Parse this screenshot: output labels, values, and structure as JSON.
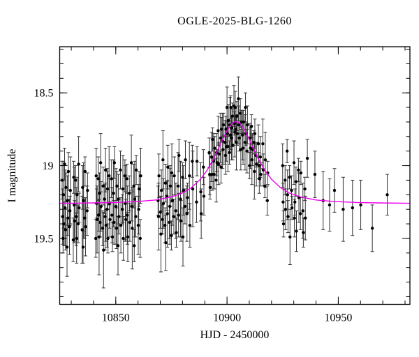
{
  "chart_data": {
    "type": "scatter",
    "title": "OGLE-2025-BLG-1260",
    "xlabel": "HJD - 2450000",
    "ylabel": "I magnitude",
    "grid": false,
    "legend": "none",
    "x_axis": {
      "range": [
        10824.8,
        10982.2
      ],
      "major_ticks": [
        10850,
        10900,
        10950
      ],
      "major_tick_labels": [
        "10850",
        "10900",
        "10950"
      ],
      "minor_tick_step": 10
    },
    "y_axis": {
      "range": [
        18.183,
        19.953
      ],
      "inverted": true,
      "major_ticks": [
        18.5,
        19.0,
        19.5
      ],
      "major_tick_labels": [
        "18.5",
        "19",
        "19.5"
      ],
      "minor_tick_step": 0.1
    },
    "colors": {
      "model_curve": "#ee00ee",
      "data_points": "#000000",
      "error_bars": "#333333",
      "frame": "#000000",
      "background": "#ffffff"
    },
    "model_curve": [
      [
        10825,
        19.259
      ],
      [
        10832,
        19.258
      ],
      [
        10840,
        19.256
      ],
      [
        10850,
        19.253
      ],
      [
        10860,
        19.246
      ],
      [
        10868,
        19.236
      ],
      [
        10875,
        19.215
      ],
      [
        10880,
        19.188
      ],
      [
        10884,
        19.151
      ],
      [
        10888,
        19.094
      ],
      [
        10891,
        19.033
      ],
      [
        10894,
        18.952
      ],
      [
        10895.5,
        18.903
      ],
      [
        10897,
        18.855
      ],
      [
        10898,
        18.822
      ],
      [
        10900,
        18.76
      ],
      [
        10902,
        18.714
      ],
      [
        10903,
        18.702
      ],
      [
        10904,
        18.697
      ],
      [
        10905,
        18.702
      ],
      [
        10906,
        18.714
      ],
      [
        10908,
        18.76
      ],
      [
        10909.5,
        18.805
      ],
      [
        10911,
        18.855
      ],
      [
        10912.5,
        18.903
      ],
      [
        10914,
        18.952
      ],
      [
        10917,
        19.033
      ],
      [
        10920,
        19.094
      ],
      [
        10924,
        19.151
      ],
      [
        10928,
        19.188
      ],
      [
        10933,
        19.215
      ],
      [
        10940,
        19.236
      ],
      [
        10948,
        19.246
      ],
      [
        10958,
        19.253
      ],
      [
        10968,
        19.256
      ],
      [
        10982,
        19.259
      ]
    ],
    "points": [
      [
        10825.9,
        19.1,
        0.13
      ],
      [
        10826.1,
        19.35,
        0.19
      ],
      [
        10826.3,
        19.5,
        0.1
      ],
      [
        10826.5,
        19.2,
        0.23
      ],
      [
        10826.7,
        19.4,
        0.15
      ],
      [
        10827.0,
        18.99,
        0.11
      ],
      [
        10827.2,
        19.29,
        0.26
      ],
      [
        10827.4,
        19.44,
        0.14
      ],
      [
        10827.6,
        19.15,
        0.1
      ],
      [
        10828.1,
        19.56,
        0.2
      ],
      [
        10828.3,
        19.24,
        0.17
      ],
      [
        10828.5,
        19.36,
        0.12
      ],
      [
        10828.7,
        19.04,
        0.13
      ],
      [
        10829.2,
        19.42,
        0.19
      ],
      [
        10829.4,
        19.31,
        0.1
      ],
      [
        10829.6,
        19.17,
        0.23
      ],
      [
        10830.9,
        19.51,
        0.15
      ],
      [
        10831.1,
        19.08,
        0.11
      ],
      [
        10831.3,
        19.27,
        0.26
      ],
      [
        10831.5,
        19.38,
        0.14
      ],
      [
        10832.0,
        19.1,
        0.1
      ],
      [
        10832.2,
        19.35,
        0.2
      ],
      [
        10832.4,
        19.5,
        0.17
      ],
      [
        10832.6,
        19.2,
        0.12
      ],
      [
        10833.1,
        19.4,
        0.13
      ],
      [
        10833.3,
        18.99,
        0.19
      ],
      [
        10833.5,
        19.29,
        0.1
      ],
      [
        10834.9,
        19.44,
        0.23
      ],
      [
        10835.1,
        19.15,
        0.15
      ],
      [
        10835.3,
        19.56,
        0.11
      ],
      [
        10835.5,
        19.24,
        0.26
      ],
      [
        10836.0,
        19.36,
        0.14
      ],
      [
        10836.2,
        19.04,
        0.1
      ],
      [
        10836.4,
        19.42,
        0.2
      ],
      [
        10837.1,
        19.31,
        0.17
      ],
      [
        10837.3,
        19.17,
        0.12
      ],
      [
        10841.0,
        19.5,
        0.13
      ],
      [
        10841.2,
        19.07,
        0.19
      ],
      [
        10841.4,
        19.26,
        0.1
      ],
      [
        10841.6,
        19.37,
        0.23
      ],
      [
        10842.1,
        19.09,
        0.15
      ],
      [
        10842.3,
        19.34,
        0.11
      ],
      [
        10842.5,
        19.49,
        0.26
      ],
      [
        10842.7,
        19.19,
        0.14
      ],
      [
        10843.0,
        19.39,
        0.1
      ],
      [
        10843.2,
        18.98,
        0.2
      ],
      [
        10843.4,
        19.28,
        0.17
      ],
      [
        10844.1,
        19.43,
        0.12
      ],
      [
        10844.3,
        19.14,
        0.13
      ],
      [
        10844.5,
        19.58,
        0.26
      ],
      [
        10845.0,
        19.23,
        0.1
      ],
      [
        10845.2,
        19.35,
        0.23
      ],
      [
        10845.4,
        19.03,
        0.15
      ],
      [
        10845.6,
        19.41,
        0.11
      ],
      [
        10846.1,
        19.3,
        0.26
      ],
      [
        10846.3,
        19.16,
        0.14
      ],
      [
        10846.5,
        19.5,
        0.1
      ],
      [
        10847.0,
        19.07,
        0.2
      ],
      [
        10847.2,
        19.26,
        0.17
      ],
      [
        10847.4,
        19.37,
        0.12
      ],
      [
        10848.1,
        19.09,
        0.13
      ],
      [
        10848.3,
        19.34,
        0.19
      ],
      [
        10848.5,
        19.49,
        0.1
      ],
      [
        10849.0,
        19.19,
        0.23
      ],
      [
        10849.2,
        19.39,
        0.15
      ],
      [
        10849.4,
        18.98,
        0.11
      ],
      [
        10850.1,
        19.28,
        0.26
      ],
      [
        10850.3,
        19.43,
        0.14
      ],
      [
        10850.5,
        19.14,
        0.1
      ],
      [
        10851.0,
        19.55,
        0.2
      ],
      [
        10851.2,
        19.23,
        0.17
      ],
      [
        10851.4,
        19.35,
        0.12
      ],
      [
        10852.1,
        19.03,
        0.13
      ],
      [
        10852.3,
        19.41,
        0.19
      ],
      [
        10853.0,
        19.3,
        0.1
      ],
      [
        10853.2,
        19.16,
        0.23
      ],
      [
        10853.4,
        19.5,
        0.15
      ],
      [
        10854.1,
        19.07,
        0.11
      ],
      [
        10854.3,
        19.26,
        0.26
      ],
      [
        10854.5,
        19.37,
        0.14
      ],
      [
        10855.0,
        19.09,
        0.1
      ],
      [
        10855.2,
        19.34,
        0.2
      ],
      [
        10855.4,
        19.49,
        0.17
      ],
      [
        10856.1,
        19.19,
        0.12
      ],
      [
        10856.3,
        19.39,
        0.13
      ],
      [
        10857.0,
        18.98,
        0.19
      ],
      [
        10857.2,
        19.28,
        0.1
      ],
      [
        10857.4,
        19.43,
        0.28
      ],
      [
        10858.1,
        19.14,
        0.15
      ],
      [
        10858.3,
        19.55,
        0.11
      ],
      [
        10858.5,
        19.23,
        0.26
      ],
      [
        10859.0,
        19.35,
        0.14
      ],
      [
        10859.2,
        19.03,
        0.1
      ],
      [
        10860.1,
        19.41,
        0.2
      ],
      [
        10860.3,
        19.3,
        0.17
      ],
      [
        10860.5,
        19.16,
        0.12
      ],
      [
        10861.0,
        19.5,
        0.13
      ],
      [
        10861.2,
        19.07,
        0.19
      ],
      [
        10869.0,
        19.24,
        0.1
      ],
      [
        10869.2,
        19.35,
        0.23
      ],
      [
        10869.4,
        19.07,
        0.15
      ],
      [
        10870.1,
        19.32,
        0.11
      ],
      [
        10870.3,
        19.47,
        0.26
      ],
      [
        10870.5,
        19.17,
        0.14
      ],
      [
        10871.0,
        19.37,
        0.1
      ],
      [
        10871.2,
        18.96,
        0.2
      ],
      [
        10871.4,
        19.26,
        0.17
      ],
      [
        10872.1,
        19.41,
        0.12
      ],
      [
        10872.3,
        19.12,
        0.13
      ],
      [
        10872.5,
        19.53,
        0.19
      ],
      [
        10873.0,
        19.21,
        0.1
      ],
      [
        10873.2,
        19.33,
        0.23
      ],
      [
        10873.4,
        19.01,
        0.15
      ],
      [
        10874.1,
        19.39,
        0.11
      ],
      [
        10874.3,
        19.28,
        0.26
      ],
      [
        10874.5,
        19.14,
        0.14
      ],
      [
        10875.0,
        19.48,
        0.1
      ],
      [
        10875.2,
        19.05,
        0.2
      ],
      [
        10875.4,
        19.24,
        0.17
      ],
      [
        10876.1,
        19.35,
        0.12
      ],
      [
        10876.3,
        19.07,
        0.13
      ],
      [
        10877.0,
        19.31,
        0.19
      ],
      [
        10877.2,
        19.46,
        0.1
      ],
      [
        10878.0,
        19.14,
        0.23
      ],
      [
        10878.2,
        19.34,
        0.15
      ],
      [
        10878.4,
        18.93,
        0.11
      ],
      [
        10879.1,
        19.23,
        0.26
      ],
      [
        10879.3,
        19.38,
        0.14
      ],
      [
        10880.0,
        19.08,
        0.1
      ],
      [
        10880.2,
        19.49,
        0.2
      ],
      [
        10880.4,
        19.17,
        0.17
      ],
      [
        10881.1,
        19.28,
        0.12
      ],
      [
        10881.3,
        18.96,
        0.13
      ],
      [
        10882.0,
        19.33,
        0.19
      ],
      [
        10882.2,
        19.22,
        0.1
      ],
      [
        10883.1,
        19.07,
        0.23
      ],
      [
        10883.3,
        19.41,
        0.15
      ],
      [
        10884.4,
        18.97,
        0.11
      ],
      [
        10884.6,
        19.16,
        0.26
      ],
      [
        10886.3,
        19.25,
        0.14
      ],
      [
        10886.5,
        18.97,
        0.1
      ],
      [
        10888.2,
        19.18,
        0.2
      ],
      [
        10888.4,
        19.33,
        0.17
      ],
      [
        10889.4,
        19.01,
        0.12
      ],
      [
        10889.6,
        19.21,
        0.13
      ],
      [
        10892.0,
        18.91,
        0.1
      ],
      [
        10892.2,
        19.06,
        0.14
      ],
      [
        10892.4,
        19.15,
        0.08
      ],
      [
        10893.1,
        18.94,
        0.17
      ],
      [
        10893.3,
        19.06,
        0.11
      ],
      [
        10893.5,
        18.82,
        0.08
      ],
      [
        10894.0,
        18.97,
        0.19
      ],
      [
        10894.2,
        19.06,
        0.1
      ],
      [
        10894.4,
        18.88,
        0.08
      ],
      [
        10895.1,
        19.1,
        0.15
      ],
      [
        10895.3,
        18.91,
        0.13
      ],
      [
        10895.5,
        18.98,
        0.09
      ],
      [
        10896.0,
        18.76,
        0.1
      ],
      [
        10896.2,
        18.99,
        0.14
      ],
      [
        10896.4,
        18.92,
        0.08
      ],
      [
        10897.1,
        18.81,
        0.17
      ],
      [
        10897.3,
        19.01,
        0.11
      ],
      [
        10897.5,
        18.75,
        0.08
      ],
      [
        10898.0,
        18.83,
        0.19
      ],
      [
        10898.2,
        18.89,
        0.1
      ],
      [
        10898.4,
        18.72,
        0.08
      ],
      [
        10899.1,
        18.84,
        0.15
      ],
      [
        10899.3,
        18.93,
        0.13
      ],
      [
        10899.5,
        18.75,
        0.09
      ],
      [
        10899.7,
        18.87,
        0.1
      ],
      [
        10900.0,
        18.6,
        0.14
      ],
      [
        10900.2,
        18.78,
        0.08
      ],
      [
        10900.4,
        18.87,
        0.17
      ],
      [
        10900.6,
        18.69,
        0.11
      ],
      [
        10901.1,
        18.91,
        0.08
      ],
      [
        10901.3,
        18.72,
        0.19
      ],
      [
        10901.5,
        18.79,
        0.1
      ],
      [
        10901.7,
        18.6,
        0.08
      ],
      [
        10902.0,
        18.81,
        0.15
      ],
      [
        10902.2,
        18.74,
        0.13
      ],
      [
        10902.4,
        18.66,
        0.09
      ],
      [
        10902.6,
        18.86,
        0.1
      ],
      [
        10903.1,
        18.59,
        0.14
      ],
      [
        10903.3,
        18.71,
        0.08
      ],
      [
        10903.5,
        18.77,
        0.17
      ],
      [
        10903.7,
        18.6,
        0.11
      ],
      [
        10904.0,
        18.75,
        0.08
      ],
      [
        10904.2,
        18.84,
        0.19
      ],
      [
        10904.4,
        18.66,
        0.1
      ],
      [
        10904.6,
        18.78,
        0.08
      ],
      [
        10905.1,
        18.54,
        0.15
      ],
      [
        10905.3,
        18.72,
        0.13
      ],
      [
        10905.5,
        18.81,
        0.09
      ],
      [
        10906.0,
        18.64,
        0.1
      ],
      [
        10906.2,
        18.89,
        0.14
      ],
      [
        10906.4,
        18.7,
        0.08
      ],
      [
        10907.0,
        18.79,
        0.17
      ],
      [
        10907.2,
        18.88,
        0.11
      ],
      [
        10907.4,
        18.7,
        0.08
      ],
      [
        10908.1,
        18.84,
        0.19
      ],
      [
        10908.3,
        18.6,
        0.1
      ],
      [
        10908.5,
        18.78,
        0.08
      ],
      [
        10909.0,
        18.9,
        0.15
      ],
      [
        10909.2,
        18.72,
        0.13
      ],
      [
        10910.1,
        19.0,
        0.09
      ],
      [
        10910.3,
        18.81,
        0.1
      ],
      [
        10910.5,
        18.88,
        0.14
      ],
      [
        10911.0,
        18.73,
        0.08
      ],
      [
        10911.2,
        18.96,
        0.17
      ],
      [
        10911.4,
        18.89,
        0.11
      ],
      [
        10912.1,
        18.84,
        0.08
      ],
      [
        10912.3,
        19.04,
        0.19
      ],
      [
        10912.5,
        18.78,
        0.1
      ],
      [
        10913.0,
        18.93,
        0.08
      ],
      [
        10913.2,
        18.99,
        0.15
      ],
      [
        10914.1,
        18.85,
        0.13
      ],
      [
        10914.3,
        19.0,
        0.09
      ],
      [
        10914.5,
        19.09,
        0.1
      ],
      [
        10915.0,
        18.94,
        0.14
      ],
      [
        10915.2,
        19.06,
        0.08
      ],
      [
        10916.1,
        18.85,
        0.17
      ],
      [
        10916.3,
        19.03,
        0.11
      ],
      [
        10917.0,
        19.14,
        0.08
      ],
      [
        10917.2,
        18.96,
        0.19
      ],
      [
        10918.1,
        19.24,
        0.1
      ],
      [
        10918.3,
        19.05,
        0.08
      ],
      [
        10925.0,
        19.0,
        0.15
      ],
      [
        10925.2,
        19.25,
        0.13
      ],
      [
        10925.4,
        19.4,
        0.09
      ],
      [
        10926.1,
        19.1,
        0.1
      ],
      [
        10926.3,
        19.3,
        0.14
      ],
      [
        10927.0,
        18.9,
        0.08
      ],
      [
        10927.2,
        19.2,
        0.17
      ],
      [
        10927.4,
        19.35,
        0.11
      ],
      [
        10928.1,
        19.08,
        0.08
      ],
      [
        10928.3,
        19.49,
        0.19
      ],
      [
        10929.0,
        19.17,
        0.1
      ],
      [
        10929.2,
        19.29,
        0.08
      ],
      [
        10930.1,
        18.98,
        0.15
      ],
      [
        10930.3,
        19.36,
        0.13
      ],
      [
        10930.5,
        19.25,
        0.09
      ],
      [
        10931.0,
        19.11,
        0.1
      ],
      [
        10931.2,
        19.45,
        0.14
      ],
      [
        10932.1,
        19.03,
        0.08
      ],
      [
        10932.3,
        19.22,
        0.17
      ],
      [
        10933.0,
        19.33,
        0.11
      ],
      [
        10933.2,
        19.05,
        0.08
      ],
      [
        10934.1,
        19.31,
        0.19
      ],
      [
        10934.3,
        19.46,
        0.1
      ],
      [
        10935.0,
        19.16,
        0.08
      ],
      [
        10935.2,
        19.36,
        0.15
      ],
      [
        10936.1,
        18.95,
        0.13
      ],
      [
        10939.5,
        19.06,
        0.16
      ],
      [
        10943.2,
        19.24,
        0.2
      ],
      [
        10946.1,
        19.27,
        0.18
      ],
      [
        10948.3,
        19.17,
        0.15
      ],
      [
        10952.2,
        19.3,
        0.22
      ],
      [
        10956.4,
        19.29,
        0.19
      ],
      [
        10960.1,
        19.27,
        0.17
      ],
      [
        10965.3,
        19.43,
        0.16
      ],
      [
        10972.0,
        19.2,
        0.14
      ]
    ]
  }
}
